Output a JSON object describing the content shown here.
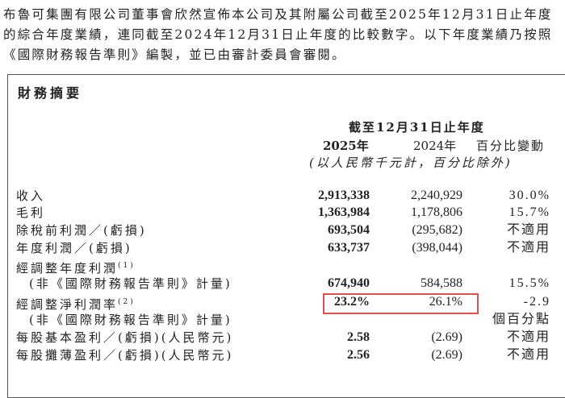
{
  "intro": "布魯可集團有限公司董事會欣然宣佈本公司及其附屬公司截至2025年12月31日止年度的綜合年度業績，連同截至2024年12月31日止年度的比較數字。以下年度業績乃按照《國際財務報告準則》編製，並已由審計委員會審閱。",
  "section_title": "財務摘要",
  "header": {
    "period": "截至12月31日止年度",
    "col_2025": "2025年",
    "col_2024": "2024年",
    "col_change": "百分比變動",
    "unit_note": "(以人民幣千元計，百分比除外)"
  },
  "rows": [
    {
      "label": "收入",
      "v2025": "2,913,338",
      "v2024": "2,240,929",
      "change": "30.0%"
    },
    {
      "label": "毛利",
      "v2025": "1,363,984",
      "v2024": "1,178,806",
      "change": "15.7%"
    },
    {
      "label": "除稅前利潤／(虧損)",
      "v2025": "693,504",
      "v2024": "(295,682)",
      "change": "不適用"
    },
    {
      "label": "年度利潤／(虧損)",
      "v2025": "633,737",
      "v2024": "(398,044)",
      "change": "不適用"
    },
    {
      "label": "經調整年度利潤",
      "note": "(1)"
    },
    {
      "label": "(非《國際財務報告準則》計量)",
      "v2025": "674,940",
      "v2024": "584,588",
      "change": "15.5%"
    },
    {
      "label": "經調整淨利潤率",
      "note": "(2)",
      "v2025": "23.2%",
      "v2024": "26.1%",
      "change": "-2.9"
    },
    {
      "label": "(非《國際財務報告準則》計量)",
      "change": "個百分點"
    },
    {
      "label": "每股基本盈利／(虧損)(人民幣元)",
      "v2025": "2.58",
      "v2024": "(2.69)",
      "change": "不適用"
    },
    {
      "label": "每股攤薄盈利／(虧損)(人民幣元)",
      "v2025": "2.56",
      "v2024": "(2.69)",
      "change": "不適用"
    }
  ],
  "highlight_color": "#e05050"
}
